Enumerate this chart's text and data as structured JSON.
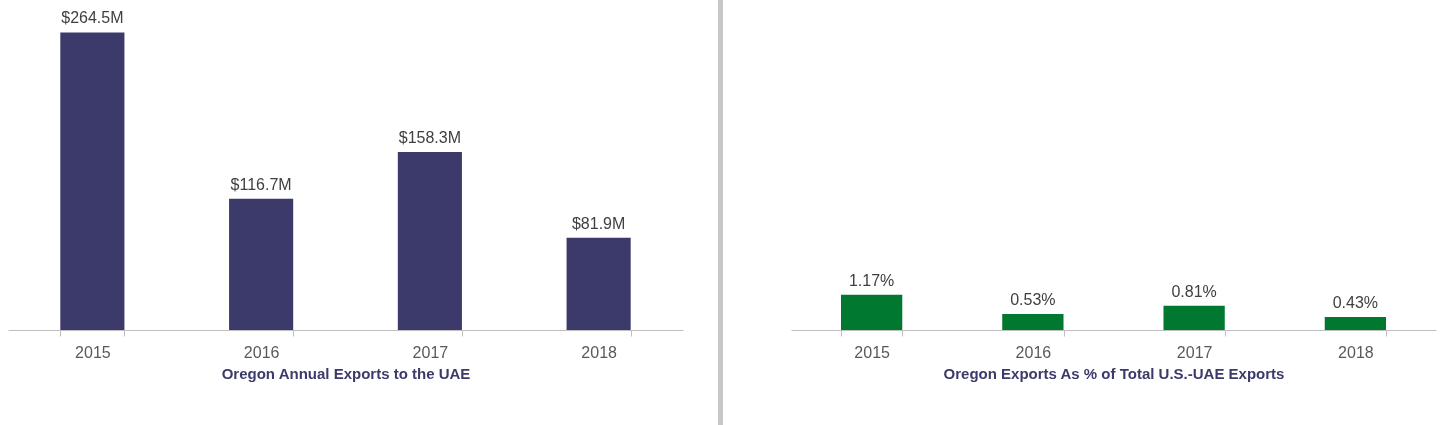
{
  "chart_data": [
    {
      "type": "bar",
      "xlabel": "Oregon Annual Exports to the UAE",
      "categories": [
        "2015",
        "2016",
        "2017",
        "2018"
      ],
      "values": [
        264.5,
        116.7,
        158.3,
        81.9
      ],
      "value_labels": [
        "$264.5M",
        "$116.7M",
        "$158.3M",
        "$81.9M"
      ],
      "color": "#3b3a6b",
      "grid": false
    },
    {
      "type": "bar",
      "xlabel": "Oregon Exports As % of Total U.S.-UAE Exports",
      "categories": [
        "2015",
        "2016",
        "2017",
        "2018"
      ],
      "values": [
        1.17,
        0.53,
        0.81,
        0.43
      ],
      "value_labels": [
        "1.17%",
        "0.53%",
        "0.81%",
        "0.43%"
      ],
      "color": "#00782f",
      "grid": false
    }
  ]
}
